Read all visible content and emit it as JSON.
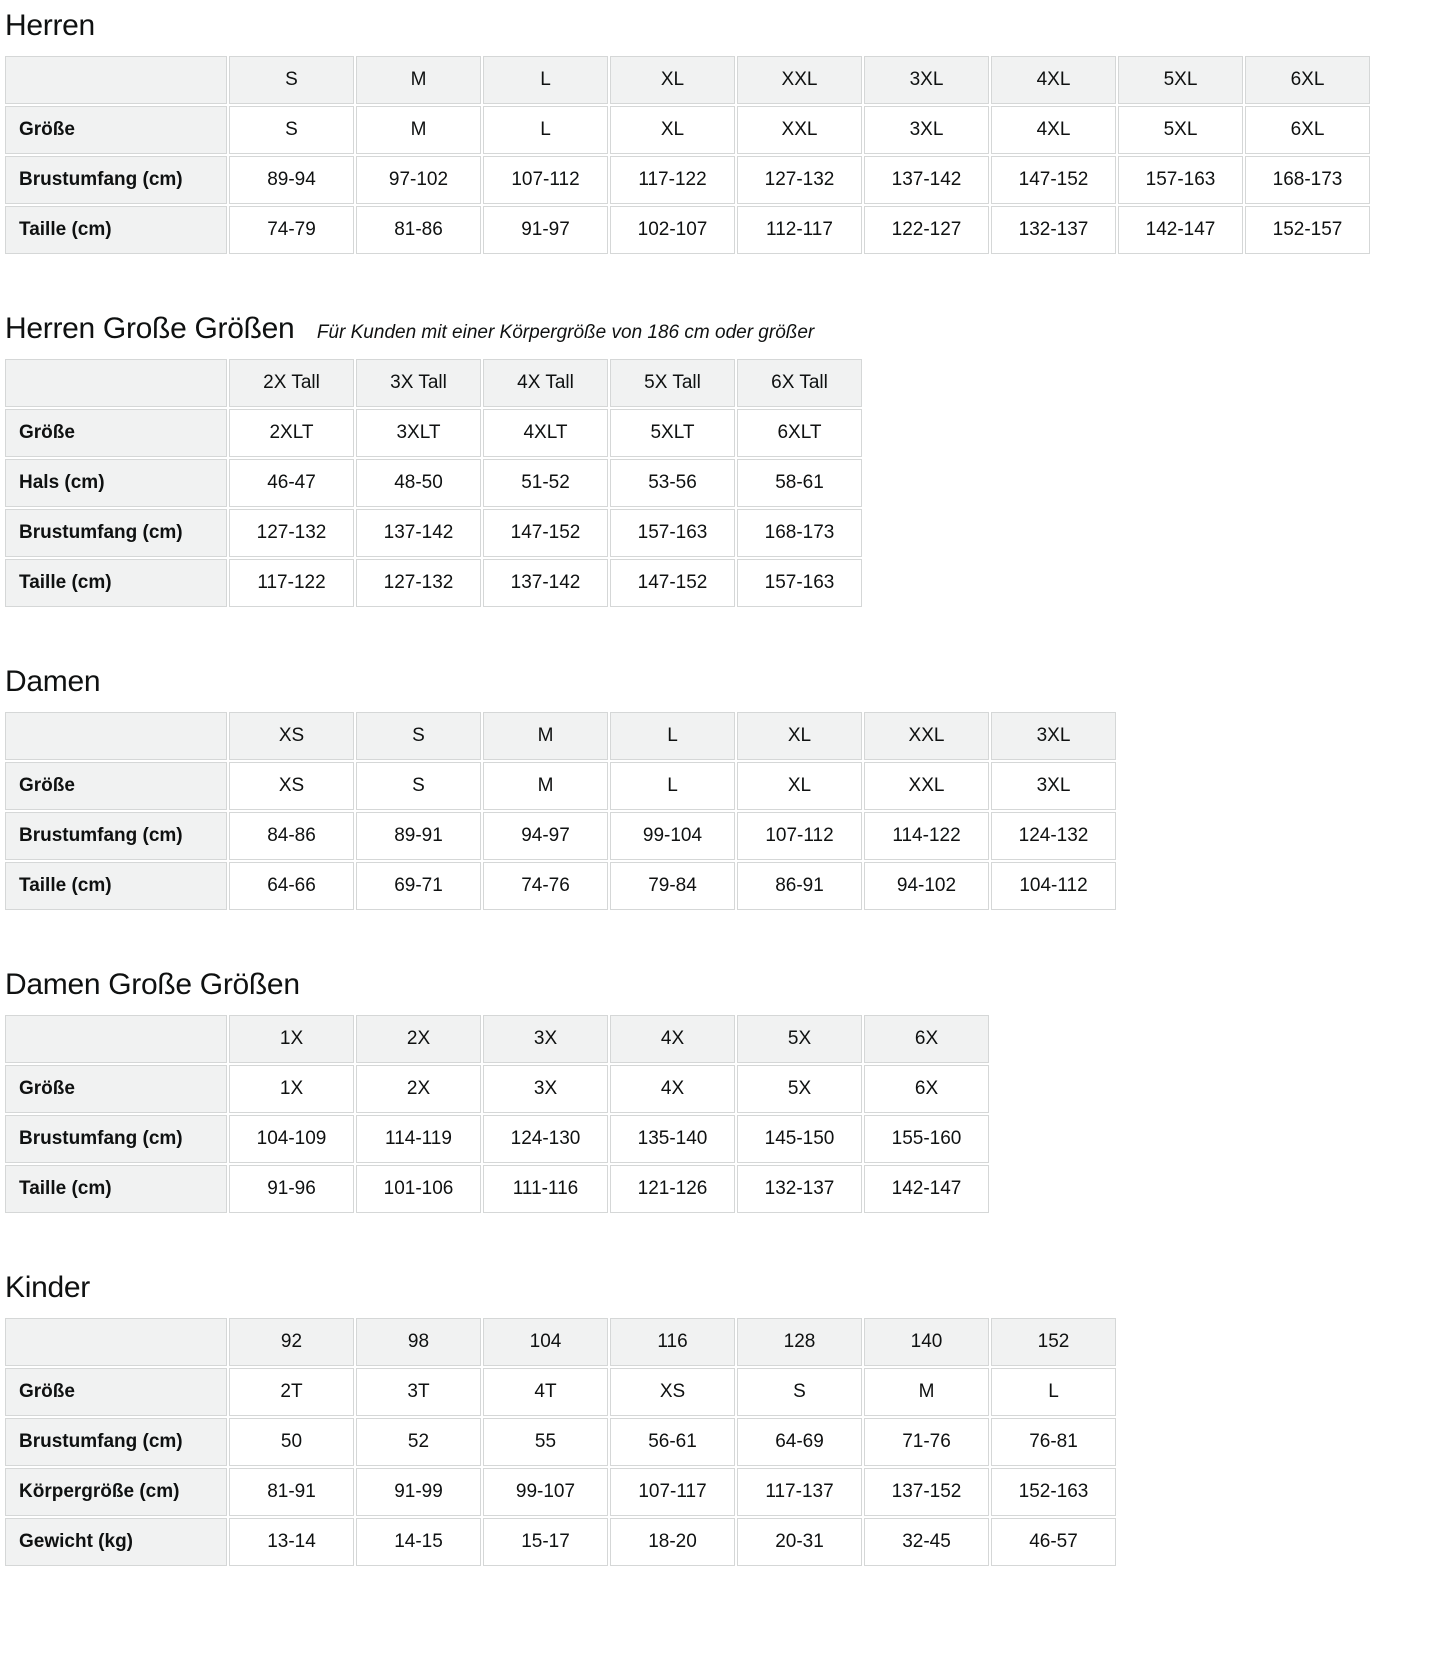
{
  "colors": {
    "header_cell_bg": "#f1f2f2",
    "cell_border": "#d5d7d7",
    "text": "#0f1111"
  },
  "sections": [
    {
      "title": "Herren",
      "columns": [
        "S",
        "M",
        "L",
        "XL",
        "XXL",
        "3XL",
        "4XL",
        "5XL",
        "6XL"
      ],
      "rows": [
        {
          "label": "Größe",
          "values": [
            "S",
            "M",
            "L",
            "XL",
            "XXL",
            "3XL",
            "4XL",
            "5XL",
            "6XL"
          ]
        },
        {
          "label": "Brustumfang (cm)",
          "values": [
            "89-94",
            "97-102",
            "107-112",
            "117-122",
            "127-132",
            "137-142",
            "147-152",
            "157-163",
            "168-173"
          ]
        },
        {
          "label": "Taille (cm)",
          "values": [
            "74-79",
            "81-86",
            "91-97",
            "102-107",
            "112-117",
            "122-127",
            "132-137",
            "142-147",
            "152-157"
          ]
        }
      ]
    },
    {
      "title": "Herren Große Größen",
      "subtitle": "Für Kunden mit einer Körpergröße von 186 cm oder größer",
      "columns": [
        "2X Tall",
        "3X Tall",
        "4X Tall",
        "5X Tall",
        "6X Tall"
      ],
      "rows": [
        {
          "label": "Größe",
          "values": [
            "2XLT",
            "3XLT",
            "4XLT",
            "5XLT",
            "6XLT"
          ]
        },
        {
          "label": "Hals (cm)",
          "values": [
            "46-47",
            "48-50",
            "51-52",
            "53-56",
            "58-61"
          ]
        },
        {
          "label": "Brustumfang (cm)",
          "values": [
            "127-132",
            "137-142",
            "147-152",
            "157-163",
            "168-173"
          ]
        },
        {
          "label": "Taille (cm)",
          "values": [
            "117-122",
            "127-132",
            "137-142",
            "147-152",
            "157-163"
          ]
        }
      ]
    },
    {
      "title": "Damen",
      "columns": [
        "XS",
        "S",
        "M",
        "L",
        "XL",
        "XXL",
        "3XL"
      ],
      "rows": [
        {
          "label": "Größe",
          "values": [
            "XS",
            "S",
            "M",
            "L",
            "XL",
            "XXL",
            "3XL"
          ]
        },
        {
          "label": "Brustumfang (cm)",
          "values": [
            "84-86",
            "89-91",
            "94-97",
            "99-104",
            "107-112",
            "114-122",
            "124-132"
          ]
        },
        {
          "label": "Taille (cm)",
          "values": [
            "64-66",
            "69-71",
            "74-76",
            "79-84",
            "86-91",
            "94-102",
            "104-112"
          ]
        }
      ]
    },
    {
      "title": "Damen Große Größen",
      "columns": [
        "1X",
        "2X",
        "3X",
        "4X",
        "5X",
        "6X"
      ],
      "rows": [
        {
          "label": "Größe",
          "values": [
            "1X",
            "2X",
            "3X",
            "4X",
            "5X",
            "6X"
          ]
        },
        {
          "label": "Brustumfang (cm)",
          "values": [
            "104-109",
            "114-119",
            "124-130",
            "135-140",
            "145-150",
            "155-160"
          ]
        },
        {
          "label": "Taille (cm)",
          "values": [
            "91-96",
            "101-106",
            "111-116",
            "121-126",
            "132-137",
            "142-147"
          ]
        }
      ]
    },
    {
      "title": "Kinder",
      "columns": [
        "92",
        "98",
        "104",
        "116",
        "128",
        "140",
        "152"
      ],
      "rows": [
        {
          "label": "Größe",
          "values": [
            "2T",
            "3T",
            "4T",
            "XS",
            "S",
            "M",
            "L"
          ]
        },
        {
          "label": "Brustumfang (cm)",
          "values": [
            "50",
            "52",
            "55",
            "56-61",
            "64-69",
            "71-76",
            "76-81"
          ]
        },
        {
          "label": "Körpergröße (cm)",
          "values": [
            "81-91",
            "91-99",
            "99-107",
            "107-117",
            "117-137",
            "137-152",
            "152-163"
          ]
        },
        {
          "label": "Gewicht (kg)",
          "values": [
            "13-14",
            "14-15",
            "15-17",
            "18-20",
            "20-31",
            "32-45",
            "46-57"
          ]
        }
      ]
    }
  ]
}
